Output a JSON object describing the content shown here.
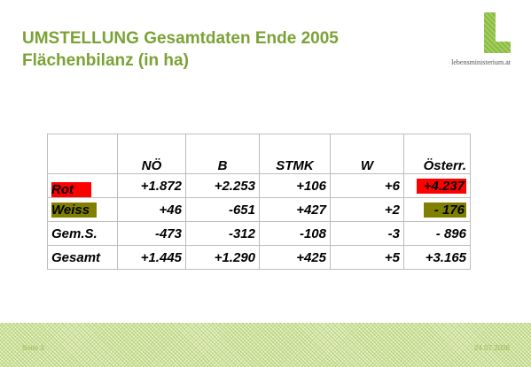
{
  "title": {
    "line1": "UMSTELLUNG Gesamtdaten Ende 2005",
    "line2": "Flächenbilanz (in ha)"
  },
  "logo": {
    "text": "lebensministerium.at",
    "brand_color": "#8cbf3f"
  },
  "table": {
    "columns": [
      "NÖ",
      "B",
      "STMK",
      "W",
      "Österr."
    ],
    "rows": [
      {
        "label": "Rot",
        "values": [
          "+1.872",
          "+2.253",
          "+106",
          "+6",
          "+4.237"
        ]
      },
      {
        "label": "Weiss",
        "values": [
          "+46",
          "-651",
          "+427",
          "+2",
          "- 176"
        ]
      },
      {
        "label": "Gem.S.",
        "values": [
          "-473",
          "-312",
          "-108",
          "-3",
          "- 896"
        ]
      },
      {
        "label": "Gesamt",
        "values": [
          "+1.445",
          "+1.290",
          "+425",
          "+5",
          "+3.165"
        ]
      }
    ],
    "highlight_colors": {
      "rot": "#ff0000",
      "weiss": "#808000"
    }
  },
  "footer": {
    "page": "Seite 3",
    "date": "24.07.2006"
  }
}
